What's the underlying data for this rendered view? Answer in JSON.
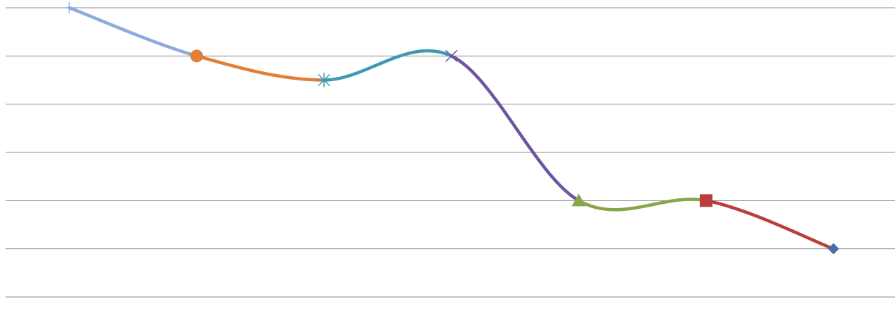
{
  "chart_data": {
    "type": "line",
    "title": "",
    "xlabel": "",
    "ylabel": "",
    "grid": true,
    "legend": "none",
    "smooth": true,
    "x": [
      1,
      2,
      3,
      4,
      5,
      6,
      7
    ],
    "y": [
      6,
      5,
      4.5,
      5,
      2,
      2,
      1
    ],
    "ylim": [
      0,
      6
    ],
    "point_markers": [
      "plus",
      "circle",
      "asterisk",
      "x",
      "triangle",
      "square",
      "diamond"
    ],
    "point_colors": [
      "#8faadc",
      "#e07f36",
      "#3c9ab1",
      "#6e55a0",
      "#87a54b",
      "#ba3f3c",
      "#4472a8"
    ],
    "segment_colors": [
      "#8faadc",
      "#e07f36",
      "#3c9ab1",
      "#6e55a0",
      "#87a54b",
      "#ba3f3c"
    ],
    "grid_color": "#8c8c8c"
  }
}
